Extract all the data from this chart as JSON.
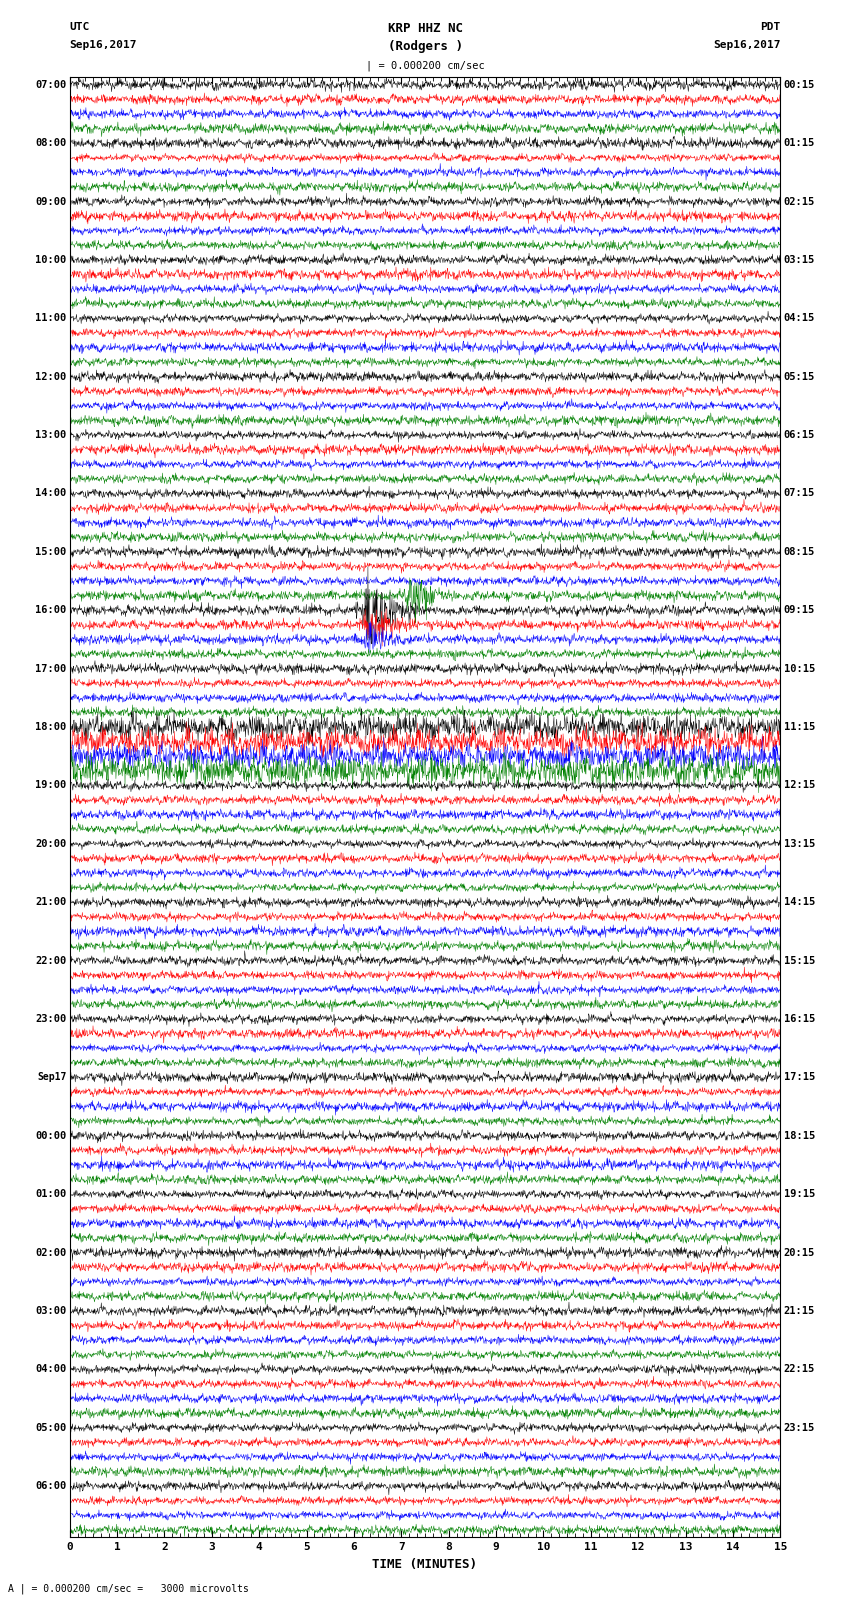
{
  "title_center": "KRP HHZ NC",
  "title_sub": "(Rodgers )",
  "scale_text": "| = 0.000200 cm/sec",
  "scale_text2": "= 0.000200 cm/sec =   3000 microvolts",
  "scale_label": "A |",
  "left_label_utc": "UTC",
  "left_label_date": "Sep16,2017",
  "right_label_pdt": "PDT",
  "right_label_date": "Sep16,2017",
  "xlabel": "TIME (MINUTES)",
  "xlim": [
    0,
    15
  ],
  "xticks": [
    0,
    1,
    2,
    3,
    4,
    5,
    6,
    7,
    8,
    9,
    10,
    11,
    12,
    13,
    14,
    15
  ],
  "colors": [
    "black",
    "red",
    "blue",
    "green"
  ],
  "left_times": [
    "07:00",
    "",
    "",
    "",
    "08:00",
    "",
    "",
    "",
    "09:00",
    "",
    "",
    "",
    "10:00",
    "",
    "",
    "",
    "11:00",
    "",
    "",
    "",
    "12:00",
    "",
    "",
    "",
    "13:00",
    "",
    "",
    "",
    "14:00",
    "",
    "",
    "",
    "15:00",
    "",
    "",
    "",
    "16:00",
    "",
    "",
    "",
    "17:00",
    "",
    "",
    "",
    "18:00",
    "",
    "",
    "",
    "19:00",
    "",
    "",
    "",
    "20:00",
    "",
    "",
    "",
    "21:00",
    "",
    "",
    "",
    "22:00",
    "",
    "",
    "",
    "23:00",
    "",
    "",
    "",
    "Sep17",
    "",
    "",
    "",
    "00:00",
    "",
    "",
    "",
    "01:00",
    "",
    "",
    "",
    "02:00",
    "",
    "",
    "",
    "03:00",
    "",
    "",
    "",
    "04:00",
    "",
    "",
    "",
    "05:00",
    "",
    "",
    "",
    "06:00",
    "",
    "",
    ""
  ],
  "right_times": [
    "00:15",
    "",
    "",
    "",
    "01:15",
    "",
    "",
    "",
    "02:15",
    "",
    "",
    "",
    "03:15",
    "",
    "",
    "",
    "04:15",
    "",
    "",
    "",
    "05:15",
    "",
    "",
    "",
    "06:15",
    "",
    "",
    "",
    "07:15",
    "",
    "",
    "",
    "08:15",
    "",
    "",
    "",
    "09:15",
    "",
    "",
    "",
    "10:15",
    "",
    "",
    "",
    "11:15",
    "",
    "",
    "",
    "12:15",
    "",
    "",
    "",
    "13:15",
    "",
    "",
    "",
    "14:15",
    "",
    "",
    "",
    "15:15",
    "",
    "",
    "",
    "16:15",
    "",
    "",
    "",
    "17:15",
    "",
    "",
    "",
    "18:15",
    "",
    "",
    "",
    "19:15",
    "",
    "",
    "",
    "20:15",
    "",
    "",
    "",
    "21:15",
    "",
    "",
    "",
    "22:15",
    "",
    "",
    "",
    "23:15",
    "",
    "",
    "",
    "",
    "",
    "",
    ""
  ],
  "num_rows": 100,
  "noise_amplitude": 0.32,
  "event_row_black": 36,
  "event_row_red": 37,
  "event_row_blue": 38,
  "event_row_green": 35,
  "background_color": "white",
  "high_amp_rows": [
    44,
    45,
    46,
    47
  ],
  "sep17_label_row": 68
}
